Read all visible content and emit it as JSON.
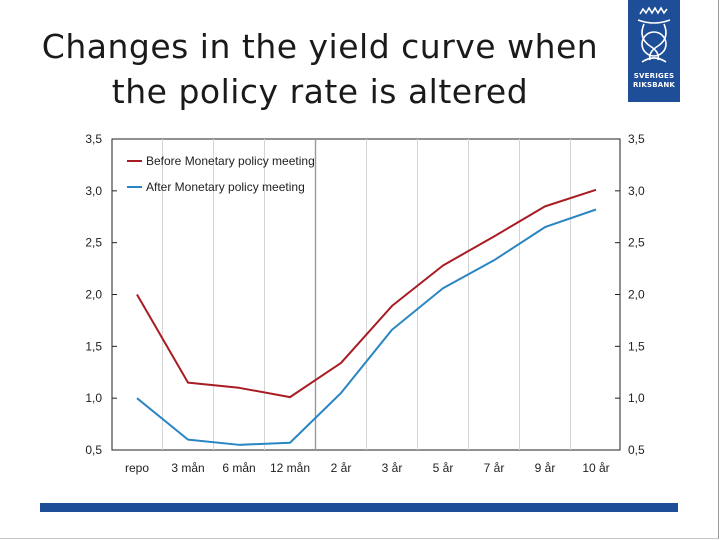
{
  "slide": {
    "title": "Changes in the yield curve when the policy rate is altered",
    "logo_text_line1": "SVERIGES",
    "logo_text_line2": "RIKSBANK",
    "accent_color": "#1f4e99"
  },
  "chart_data": {
    "type": "line",
    "title": "",
    "xlabel": "",
    "ylabel": "",
    "categories": [
      "repo",
      "3 mån",
      "6 mån",
      "12 mån",
      "2 år",
      "3 år",
      "5 år",
      "7 år",
      "9 år",
      "10 år"
    ],
    "ylim": [
      0.5,
      3.5
    ],
    "y_ticks": [
      "3,5",
      "3,0",
      "2,5",
      "2,0",
      "1,5",
      "1,0",
      "0,5"
    ],
    "y_tick_values": [
      3.5,
      3.0,
      2.5,
      2.0,
      1.5,
      1.0,
      0.5
    ],
    "grid": "vertical",
    "legend_position": "top-left",
    "series": [
      {
        "name": "Before Monetary policy meeting",
        "color": "#a81c23",
        "values": [
          2.0,
          1.15,
          1.1,
          1.01,
          1.34,
          1.89,
          2.28,
          2.56,
          2.85,
          3.01
        ]
      },
      {
        "name": "After Monetary policy meeting",
        "color": "#2a86c3",
        "values": [
          1.0,
          0.6,
          0.55,
          0.57,
          1.05,
          1.66,
          2.06,
          2.33,
          2.65,
          2.82
        ]
      }
    ]
  }
}
